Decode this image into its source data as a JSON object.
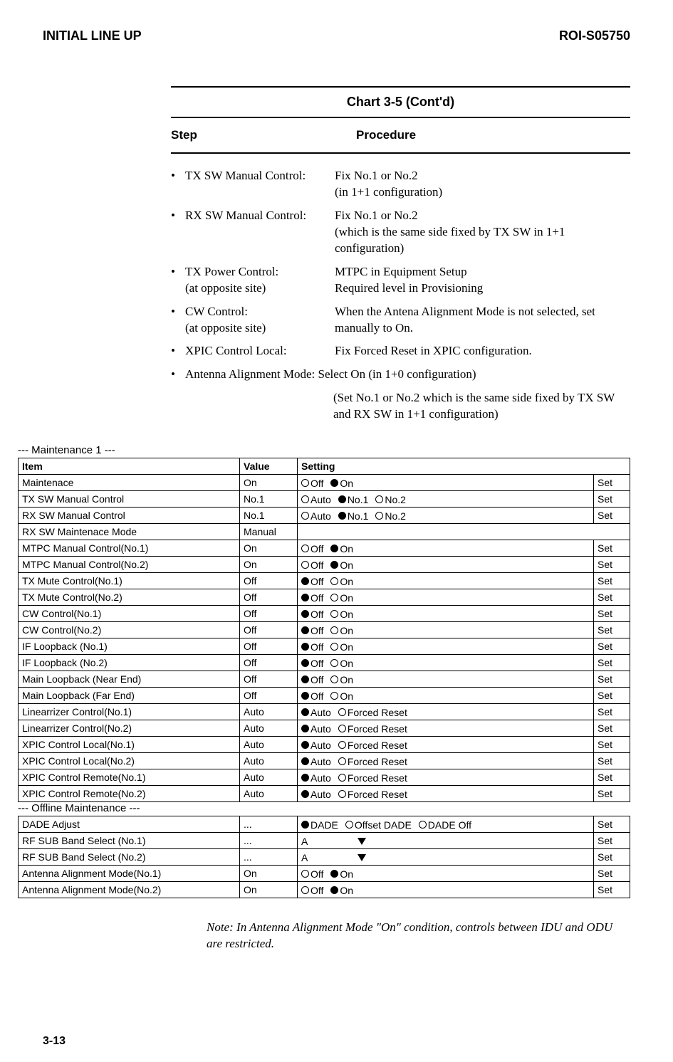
{
  "header": {
    "left": "INITIAL LINE UP",
    "right": "ROI-S05750"
  },
  "chart": {
    "title": "Chart 3-5 (Cont'd)",
    "step_label": "Step",
    "procedure_label": "Procedure"
  },
  "bullets": [
    {
      "label": "TX SW Manual Control:",
      "value": "Fix No.1 or No.2\n(in 1+1 configuration)"
    },
    {
      "label": "RX SW Manual Control:",
      "value": "Fix No.1 or No.2\n(which is the same side fixed by TX SW in 1+1 configuration)"
    },
    {
      "label": "TX Power Control:\n(at opposite site)",
      "value": "MTPC in Equipment Setup\nRequired level in Provisioning"
    },
    {
      "label": "CW Control:\n(at opposite site)",
      "value": "When the Antena Alignment Mode is not selected, set manually to On."
    },
    {
      "label": "XPIC Control Local:",
      "value": "Fix Forced Reset in XPIC configuration."
    },
    {
      "label": "Antenna Alignment Mode: Select On (in 1+0 configuration)",
      "value_indent": "(Set No.1 or No.2 which is the same side fixed by TX SW and RX SW in 1+1 configuration)"
    }
  ],
  "maint1_heading": "--- Maintenance 1 ---",
  "offline_heading": "--- Offline Maintenance ---",
  "table_headers": {
    "item": "Item",
    "value": "Value",
    "setting": "Setting"
  },
  "set_label": "Set",
  "maint1_rows": [
    {
      "item": "Maintenace",
      "value": "On",
      "opts": [
        {
          "t": "Off",
          "sel": false
        },
        {
          "t": "On",
          "sel": true
        }
      ],
      "set": true
    },
    {
      "item": "TX SW Manual Control",
      "value": "No.1",
      "opts": [
        {
          "t": "Auto",
          "sel": false
        },
        {
          "t": "No.1",
          "sel": true
        },
        {
          "t": "No.2",
          "sel": false
        }
      ],
      "set": true
    },
    {
      "item": "RX SW Manual Control",
      "value": "No.1",
      "opts": [
        {
          "t": "Auto",
          "sel": false
        },
        {
          "t": "No.1",
          "sel": true
        },
        {
          "t": "No.2",
          "sel": false
        }
      ],
      "set": true
    },
    {
      "item": "RX SW  Maintenace Mode",
      "value": "Manual",
      "plain": true
    },
    {
      "item": "MTPC Manual Control(No.1)",
      "value": "On",
      "opts": [
        {
          "t": "Off",
          "sel": false
        },
        {
          "t": "On",
          "sel": true
        }
      ],
      "set": true
    },
    {
      "item": "MTPC Manual Control(No.2)",
      "value": "On",
      "opts": [
        {
          "t": "Off",
          "sel": false
        },
        {
          "t": "On",
          "sel": true
        }
      ],
      "set": true
    },
    {
      "item": "TX Mute Control(No.1)",
      "value": "Off",
      "opts": [
        {
          "t": "Off",
          "sel": true
        },
        {
          "t": "On",
          "sel": false
        }
      ],
      "set": true
    },
    {
      "item": "TX Mute Control(No.2)",
      "value": "Off",
      "opts": [
        {
          "t": "Off",
          "sel": true
        },
        {
          "t": "On",
          "sel": false
        }
      ],
      "set": true
    },
    {
      "item": "CW Control(No.1)",
      "value": "Off",
      "opts": [
        {
          "t": "Off",
          "sel": true
        },
        {
          "t": "On",
          "sel": false
        }
      ],
      "set": true
    },
    {
      "item": "CW Control(No.2)",
      "value": "Off",
      "opts": [
        {
          "t": "Off",
          "sel": true
        },
        {
          "t": "On",
          "sel": false
        }
      ],
      "set": true
    },
    {
      "item": "IF Loopback (No.1)",
      "value": "Off",
      "opts": [
        {
          "t": "Off",
          "sel": true
        },
        {
          "t": "On",
          "sel": false
        }
      ],
      "set": true
    },
    {
      "item": "IF Loopback (No.2)",
      "value": "Off",
      "opts": [
        {
          "t": "Off",
          "sel": true
        },
        {
          "t": "On",
          "sel": false
        }
      ],
      "set": true
    },
    {
      "item": "Main Loopback (Near End)",
      "value": "Off",
      "opts": [
        {
          "t": "Off",
          "sel": true
        },
        {
          "t": "On",
          "sel": false
        }
      ],
      "set": true
    },
    {
      "item": "Main Loopback (Far End)",
      "value": "Off",
      "opts": [
        {
          "t": "Off",
          "sel": true
        },
        {
          "t": "On",
          "sel": false
        }
      ],
      "set": true
    },
    {
      "item": "Linearrizer Control(No.1)",
      "value": "Auto",
      "opts": [
        {
          "t": "Auto",
          "sel": true
        },
        {
          "t": "Forced Reset",
          "sel": false
        }
      ],
      "set": true
    },
    {
      "item": "Linearrizer  Control(No.2)",
      "value": "Auto",
      "opts": [
        {
          "t": "Auto",
          "sel": true
        },
        {
          "t": "Forced Reset",
          "sel": false
        }
      ],
      "set": true
    },
    {
      "item": "XPIC Control Local(No.1)",
      "value": "Auto",
      "opts": [
        {
          "t": "Auto",
          "sel": true
        },
        {
          "t": "Forced Reset",
          "sel": false
        }
      ],
      "set": true
    },
    {
      "item": "XPIC Control Local(No.2)",
      "value": "Auto",
      "opts": [
        {
          "t": "Auto",
          "sel": true
        },
        {
          "t": "Forced Reset",
          "sel": false
        }
      ],
      "set": true
    },
    {
      "item": "XPIC Control Remote(No.1)",
      "value": "Auto",
      "opts": [
        {
          "t": "Auto",
          "sel": true
        },
        {
          "t": "Forced Reset",
          "sel": false
        }
      ],
      "set": true
    },
    {
      "item": "XPIC Control Remote(No.2)",
      "value": "Auto",
      "opts": [
        {
          "t": "Auto",
          "sel": true
        },
        {
          "t": "Forced Reset",
          "sel": false
        }
      ],
      "set": true
    }
  ],
  "offline_rows": [
    {
      "item": "DADE Adjust",
      "value": "...",
      "opts": [
        {
          "t": "DADE",
          "sel": true
        },
        {
          "t": "Offset DADE",
          "sel": false
        },
        {
          "t": "DADE Off",
          "sel": false
        }
      ],
      "set": true
    },
    {
      "item": "RF SUB Band Select (No.1)",
      "value": "...",
      "dropdown": "A",
      "set": true
    },
    {
      "item": "RF SUB Band Select (No.2)",
      "value": "...",
      "dropdown": "A",
      "set": true
    },
    {
      "item": "Antenna Alignment Mode(No.1)",
      "value": "On",
      "opts": [
        {
          "t": "Off",
          "sel": false
        },
        {
          "t": "On",
          "sel": true
        }
      ],
      "set": true
    },
    {
      "item": "Antenna Alignment Mode(No.2)",
      "value": "On",
      "opts": [
        {
          "t": "Off",
          "sel": false
        },
        {
          "t": "On",
          "sel": true
        }
      ],
      "set": true
    }
  ],
  "note": {
    "prefix": "Note: ",
    "body_before": "In Antenna Alignment Mode \"",
    "on": "On",
    "body_after": "\" condition, controls between IDU and ODU are restricted."
  },
  "page_number": "3-13",
  "colors": {
    "text": "#000000",
    "bg": "#ffffff",
    "rule": "#000000"
  }
}
